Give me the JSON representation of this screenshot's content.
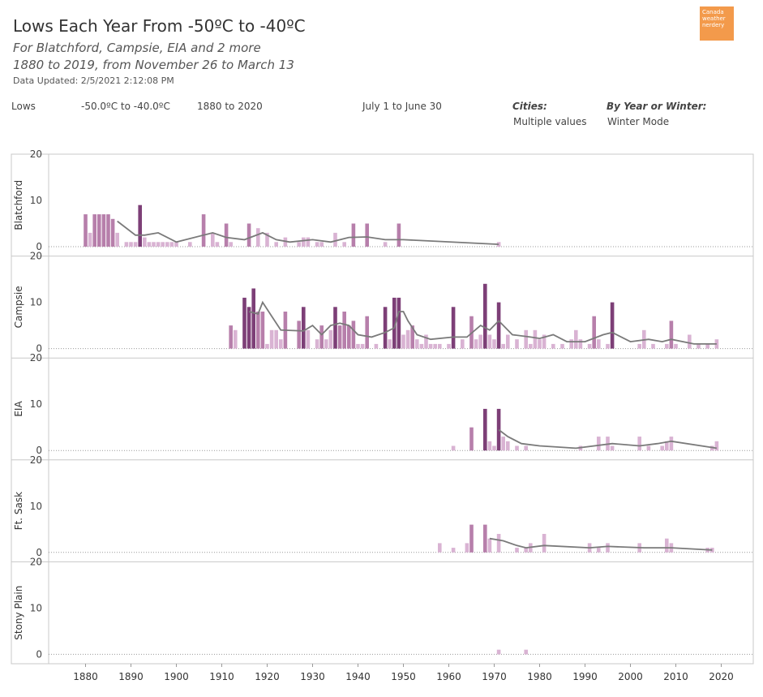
{
  "header": {
    "title": "Lows Each Year From -50ºC to -40ºC",
    "subtitle1": "For Blatchford, Campsie, EIA and 2 more",
    "subtitle2": "1880 to 2019, from November 26 to March 13",
    "updated": "Data Updated: 2/5/2021 2:12:08 PM",
    "logo_text": "Canada weather nerdery"
  },
  "filters": {
    "measure": "Lows",
    "range": "-50.0ºC to -40.0ºC",
    "years": "1880 to 2020",
    "season": "July 1 to June 30",
    "cities_label": "Cities:",
    "cities_value": "Multiple values",
    "mode_label": "By Year or Winter:",
    "mode_value": "Winter Mode"
  },
  "colors": {
    "bar_light": "#d9b3d3",
    "bar_mid": "#b77fab",
    "bar_dark": "#7d3f77",
    "trend": "#7a7a7a",
    "frame": "#c8c8c8",
    "logo": "#f39a4b"
  },
  "chart_data": {
    "type": "bar",
    "x_ticks": [
      1880,
      1890,
      1900,
      1910,
      1920,
      1930,
      1940,
      1950,
      1960,
      1970,
      1980,
      1990,
      2000,
      2010,
      2020
    ],
    "y_ticks": [
      0,
      10,
      20
    ],
    "ylim": [
      0,
      20
    ],
    "panels": [
      {
        "name": "Blatchford",
        "years": [
          1880,
          1881,
          1882,
          1883,
          1884,
          1885,
          1886,
          1887,
          1889,
          1890,
          1891,
          1892,
          1893,
          1894,
          1895,
          1896,
          1897,
          1898,
          1899,
          1900,
          1903,
          1906,
          1908,
          1909,
          1911,
          1912,
          1916,
          1918,
          1920,
          1922,
          1924,
          1927,
          1928,
          1929,
          1931,
          1932,
          1935,
          1937,
          1939,
          1942,
          1946,
          1949,
          1971
        ],
        "values": [
          7,
          3,
          7,
          7,
          7,
          7,
          6,
          3,
          1,
          1,
          1,
          9,
          2,
          1,
          1,
          1,
          1,
          1,
          1,
          1,
          1,
          7,
          3,
          1,
          5,
          1,
          5,
          4,
          3,
          1,
          2,
          1,
          2,
          2,
          1,
          1,
          3,
          1,
          5,
          5,
          1,
          5,
          1
        ],
        "trend": [
          [
            1887,
            5.5
          ],
          [
            1891,
            2.5
          ],
          [
            1893,
            2.5
          ],
          [
            1896,
            3
          ],
          [
            1900,
            1
          ],
          [
            1908,
            3
          ],
          [
            1911,
            2
          ],
          [
            1915,
            1.5
          ],
          [
            1919,
            3
          ],
          [
            1922,
            1.5
          ],
          [
            1925,
            1
          ],
          [
            1930,
            1.5
          ],
          [
            1934,
            1
          ],
          [
            1938,
            2
          ],
          [
            1942,
            2.1
          ],
          [
            1946,
            1.5
          ],
          [
            1950,
            1.5
          ],
          [
            1971,
            0.5
          ]
        ]
      },
      {
        "name": "Campsie",
        "years": [
          1912,
          1913,
          1915,
          1916,
          1917,
          1918,
          1919,
          1920,
          1921,
          1922,
          1923,
          1924,
          1927,
          1928,
          1929,
          1931,
          1932,
          1933,
          1934,
          1935,
          1936,
          1937,
          1938,
          1939,
          1940,
          1941,
          1942,
          1944,
          1946,
          1947,
          1948,
          1949,
          1950,
          1951,
          1952,
          1953,
          1954,
          1955,
          1956,
          1957,
          1958,
          1960,
          1961,
          1963,
          1965,
          1966,
          1967,
          1968,
          1969,
          1970,
          1971,
          1972,
          1973,
          1975,
          1977,
          1978,
          1979,
          1980,
          1981,
          1983,
          1985,
          1987,
          1988,
          1989,
          1991,
          1992,
          1993,
          1995,
          1996,
          2002,
          2003,
          2005,
          2008,
          2009,
          2010,
          2013,
          2015,
          2017,
          2019
        ],
        "values": [
          5,
          4,
          11,
          9,
          13,
          8,
          8,
          1,
          4,
          4,
          2,
          8,
          6,
          9,
          4,
          2,
          5,
          2,
          4,
          9,
          5,
          8,
          5,
          6,
          1,
          1,
          7,
          1,
          9,
          2,
          11,
          11,
          3,
          4,
          5,
          2,
          1,
          3,
          1,
          1,
          1,
          1,
          9,
          2,
          7,
          2,
          3,
          14,
          3,
          2,
          10,
          1,
          3,
          2,
          4,
          1,
          4,
          2,
          3,
          1,
          1,
          2,
          4,
          2,
          1,
          7,
          2,
          1,
          10,
          1,
          4,
          1,
          1,
          6,
          1,
          3,
          1,
          1,
          2
        ],
        "trend": [
          [
            1916,
            8
          ],
          [
            1918,
            7.5
          ],
          [
            1919,
            10
          ],
          [
            1921,
            7
          ],
          [
            1923,
            4
          ],
          [
            1928,
            3.8
          ],
          [
            1930,
            5
          ],
          [
            1932,
            3
          ],
          [
            1934,
            5
          ],
          [
            1936,
            5.5
          ],
          [
            1938,
            5
          ],
          [
            1940,
            3
          ],
          [
            1943,
            2.5
          ],
          [
            1946,
            3.5
          ],
          [
            1948,
            4.5
          ],
          [
            1949,
            8
          ],
          [
            1950,
            8
          ],
          [
            1951,
            6
          ],
          [
            1953,
            3
          ],
          [
            1956,
            2
          ],
          [
            1961,
            2.5
          ],
          [
            1964,
            2.5
          ],
          [
            1967,
            5
          ],
          [
            1969,
            4
          ],
          [
            1971,
            6
          ],
          [
            1974,
            3
          ],
          [
            1978,
            2.5
          ],
          [
            1980,
            2.2
          ],
          [
            1983,
            3
          ],
          [
            1986,
            1.5
          ],
          [
            1990,
            1.5
          ],
          [
            1994,
            3
          ],
          [
            1996,
            3.5
          ],
          [
            2000,
            1.5
          ],
          [
            2004,
            2
          ],
          [
            2007,
            1.5
          ],
          [
            2009,
            2
          ],
          [
            2014,
            1
          ],
          [
            2019,
            1
          ]
        ]
      },
      {
        "name": "EIA",
        "years": [
          1961,
          1965,
          1968,
          1969,
          1970,
          1971,
          1972,
          1973,
          1975,
          1977,
          1989,
          1993,
          1995,
          1996,
          2002,
          2004,
          2007,
          2008,
          2009,
          2018,
          2019
        ],
        "values": [
          1,
          5,
          9,
          2,
          1,
          9,
          3,
          2,
          1,
          1,
          1,
          3,
          3,
          1,
          3,
          1,
          1,
          2,
          3,
          1,
          2
        ],
        "trend": [
          [
            1971,
            4.5
          ],
          [
            1973,
            3
          ],
          [
            1976,
            1.5
          ],
          [
            1980,
            1
          ],
          [
            1988,
            0.5
          ],
          [
            1996,
            1.5
          ],
          [
            2002,
            1
          ],
          [
            2006,
            1.5
          ],
          [
            2009,
            2
          ],
          [
            2019,
            0.5
          ]
        ]
      },
      {
        "name": "Ft. Sask",
        "years": [
          1958,
          1961,
          1964,
          1965,
          1968,
          1969,
          1971,
          1975,
          1977,
          1978,
          1981,
          1991,
          1993,
          1995,
          2002,
          2008,
          2009,
          2017,
          2018
        ],
        "values": [
          2,
          1,
          2,
          6,
          6,
          3,
          4,
          1,
          1,
          2,
          4,
          2,
          1,
          2,
          2,
          3,
          2,
          1,
          1
        ],
        "trend": [
          [
            1969,
            3
          ],
          [
            1972,
            2.5
          ],
          [
            1975,
            1.5
          ],
          [
            1977,
            1
          ],
          [
            1981,
            1.5
          ],
          [
            1991,
            1
          ],
          [
            1995,
            1.3
          ],
          [
            2003,
            1
          ],
          [
            2009,
            1
          ],
          [
            2018,
            0.5
          ]
        ]
      },
      {
        "name": "Stony Plain",
        "years": [
          1971,
          1977
        ],
        "values": [
          1,
          1
        ],
        "trend": []
      }
    ]
  }
}
